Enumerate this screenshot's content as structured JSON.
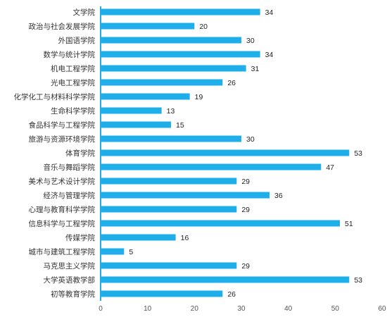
{
  "colors": {
    "bar": "#1EAFEA",
    "axis": "#1EAFEA",
    "tick_text": "#555555",
    "label_text": "#333333"
  },
  "chart_data": {
    "type": "bar",
    "orientation": "horizontal",
    "title": "",
    "xlabel": "",
    "ylabel": "",
    "grid": false,
    "legend": "none",
    "xlim": [
      0,
      60
    ],
    "xticks": [
      0,
      10,
      20,
      30,
      40,
      50,
      60
    ],
    "categories": [
      "文学院",
      "政治与社会发展学院",
      "外国语学院",
      "数学与统计学院",
      "机电工程学院",
      "光电工程学院",
      "化学化工与材料科学学院",
      "生命科学学院",
      "食品科学与工程学院",
      "旅游与资源环境学院",
      "体育学院",
      "音乐与舞蹈学院",
      "美术与艺术设计学院",
      "经济与管理学院",
      "心理与教育科学学院",
      "信息科学与工程学院",
      "传媒学院",
      "城市与建筑工程学院",
      "马克思主义学院",
      "大学英语教学部",
      "初等教育学院"
    ],
    "values": [
      34,
      20,
      30,
      34,
      31,
      26,
      19,
      13,
      15,
      30,
      53,
      47,
      29,
      36,
      29,
      51,
      16,
      5,
      29,
      53,
      26
    ]
  }
}
